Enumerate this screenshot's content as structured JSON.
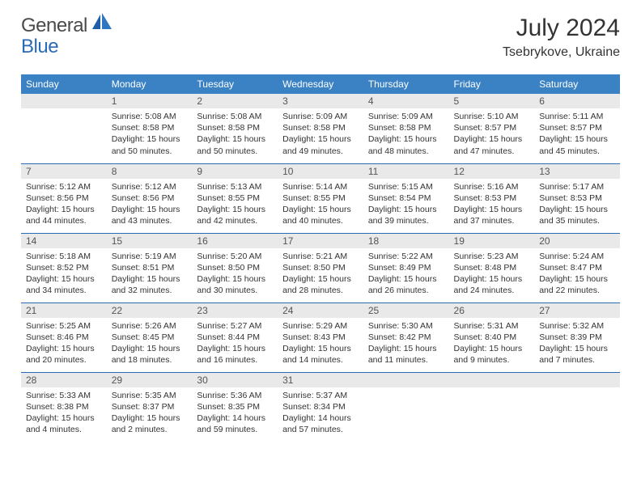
{
  "brand": {
    "general": "General",
    "blue": "Blue"
  },
  "header": {
    "title": "July 2024",
    "location": "Tsebrykove, Ukraine"
  },
  "colors": {
    "header_bg": "#3b82c4",
    "header_text": "#ffffff",
    "daynum_bg": "#e9e9e9",
    "row_divider": "#2a6bb5",
    "body_text": "#333333",
    "logo_gray": "#4a4a4a",
    "logo_blue": "#2a6bb5"
  },
  "weekdays": [
    "Sunday",
    "Monday",
    "Tuesday",
    "Wednesday",
    "Thursday",
    "Friday",
    "Saturday"
  ],
  "weeks": [
    [
      {
        "num": "",
        "sunrise": "",
        "sunset": "",
        "daylight": ""
      },
      {
        "num": "1",
        "sunrise": "Sunrise: 5:08 AM",
        "sunset": "Sunset: 8:58 PM",
        "daylight": "Daylight: 15 hours and 50 minutes."
      },
      {
        "num": "2",
        "sunrise": "Sunrise: 5:08 AM",
        "sunset": "Sunset: 8:58 PM",
        "daylight": "Daylight: 15 hours and 50 minutes."
      },
      {
        "num": "3",
        "sunrise": "Sunrise: 5:09 AM",
        "sunset": "Sunset: 8:58 PM",
        "daylight": "Daylight: 15 hours and 49 minutes."
      },
      {
        "num": "4",
        "sunrise": "Sunrise: 5:09 AM",
        "sunset": "Sunset: 8:58 PM",
        "daylight": "Daylight: 15 hours and 48 minutes."
      },
      {
        "num": "5",
        "sunrise": "Sunrise: 5:10 AM",
        "sunset": "Sunset: 8:57 PM",
        "daylight": "Daylight: 15 hours and 47 minutes."
      },
      {
        "num": "6",
        "sunrise": "Sunrise: 5:11 AM",
        "sunset": "Sunset: 8:57 PM",
        "daylight": "Daylight: 15 hours and 45 minutes."
      }
    ],
    [
      {
        "num": "7",
        "sunrise": "Sunrise: 5:12 AM",
        "sunset": "Sunset: 8:56 PM",
        "daylight": "Daylight: 15 hours and 44 minutes."
      },
      {
        "num": "8",
        "sunrise": "Sunrise: 5:12 AM",
        "sunset": "Sunset: 8:56 PM",
        "daylight": "Daylight: 15 hours and 43 minutes."
      },
      {
        "num": "9",
        "sunrise": "Sunrise: 5:13 AM",
        "sunset": "Sunset: 8:55 PM",
        "daylight": "Daylight: 15 hours and 42 minutes."
      },
      {
        "num": "10",
        "sunrise": "Sunrise: 5:14 AM",
        "sunset": "Sunset: 8:55 PM",
        "daylight": "Daylight: 15 hours and 40 minutes."
      },
      {
        "num": "11",
        "sunrise": "Sunrise: 5:15 AM",
        "sunset": "Sunset: 8:54 PM",
        "daylight": "Daylight: 15 hours and 39 minutes."
      },
      {
        "num": "12",
        "sunrise": "Sunrise: 5:16 AM",
        "sunset": "Sunset: 8:53 PM",
        "daylight": "Daylight: 15 hours and 37 minutes."
      },
      {
        "num": "13",
        "sunrise": "Sunrise: 5:17 AM",
        "sunset": "Sunset: 8:53 PM",
        "daylight": "Daylight: 15 hours and 35 minutes."
      }
    ],
    [
      {
        "num": "14",
        "sunrise": "Sunrise: 5:18 AM",
        "sunset": "Sunset: 8:52 PM",
        "daylight": "Daylight: 15 hours and 34 minutes."
      },
      {
        "num": "15",
        "sunrise": "Sunrise: 5:19 AM",
        "sunset": "Sunset: 8:51 PM",
        "daylight": "Daylight: 15 hours and 32 minutes."
      },
      {
        "num": "16",
        "sunrise": "Sunrise: 5:20 AM",
        "sunset": "Sunset: 8:50 PM",
        "daylight": "Daylight: 15 hours and 30 minutes."
      },
      {
        "num": "17",
        "sunrise": "Sunrise: 5:21 AM",
        "sunset": "Sunset: 8:50 PM",
        "daylight": "Daylight: 15 hours and 28 minutes."
      },
      {
        "num": "18",
        "sunrise": "Sunrise: 5:22 AM",
        "sunset": "Sunset: 8:49 PM",
        "daylight": "Daylight: 15 hours and 26 minutes."
      },
      {
        "num": "19",
        "sunrise": "Sunrise: 5:23 AM",
        "sunset": "Sunset: 8:48 PM",
        "daylight": "Daylight: 15 hours and 24 minutes."
      },
      {
        "num": "20",
        "sunrise": "Sunrise: 5:24 AM",
        "sunset": "Sunset: 8:47 PM",
        "daylight": "Daylight: 15 hours and 22 minutes."
      }
    ],
    [
      {
        "num": "21",
        "sunrise": "Sunrise: 5:25 AM",
        "sunset": "Sunset: 8:46 PM",
        "daylight": "Daylight: 15 hours and 20 minutes."
      },
      {
        "num": "22",
        "sunrise": "Sunrise: 5:26 AM",
        "sunset": "Sunset: 8:45 PM",
        "daylight": "Daylight: 15 hours and 18 minutes."
      },
      {
        "num": "23",
        "sunrise": "Sunrise: 5:27 AM",
        "sunset": "Sunset: 8:44 PM",
        "daylight": "Daylight: 15 hours and 16 minutes."
      },
      {
        "num": "24",
        "sunrise": "Sunrise: 5:29 AM",
        "sunset": "Sunset: 8:43 PM",
        "daylight": "Daylight: 15 hours and 14 minutes."
      },
      {
        "num": "25",
        "sunrise": "Sunrise: 5:30 AM",
        "sunset": "Sunset: 8:42 PM",
        "daylight": "Daylight: 15 hours and 11 minutes."
      },
      {
        "num": "26",
        "sunrise": "Sunrise: 5:31 AM",
        "sunset": "Sunset: 8:40 PM",
        "daylight": "Daylight: 15 hours and 9 minutes."
      },
      {
        "num": "27",
        "sunrise": "Sunrise: 5:32 AM",
        "sunset": "Sunset: 8:39 PM",
        "daylight": "Daylight: 15 hours and 7 minutes."
      }
    ],
    [
      {
        "num": "28",
        "sunrise": "Sunrise: 5:33 AM",
        "sunset": "Sunset: 8:38 PM",
        "daylight": "Daylight: 15 hours and 4 minutes."
      },
      {
        "num": "29",
        "sunrise": "Sunrise: 5:35 AM",
        "sunset": "Sunset: 8:37 PM",
        "daylight": "Daylight: 15 hours and 2 minutes."
      },
      {
        "num": "30",
        "sunrise": "Sunrise: 5:36 AM",
        "sunset": "Sunset: 8:35 PM",
        "daylight": "Daylight: 14 hours and 59 minutes."
      },
      {
        "num": "31",
        "sunrise": "Sunrise: 5:37 AM",
        "sunset": "Sunset: 8:34 PM",
        "daylight": "Daylight: 14 hours and 57 minutes."
      },
      {
        "num": "",
        "sunrise": "",
        "sunset": "",
        "daylight": ""
      },
      {
        "num": "",
        "sunrise": "",
        "sunset": "",
        "daylight": ""
      },
      {
        "num": "",
        "sunrise": "",
        "sunset": "",
        "daylight": ""
      }
    ]
  ]
}
